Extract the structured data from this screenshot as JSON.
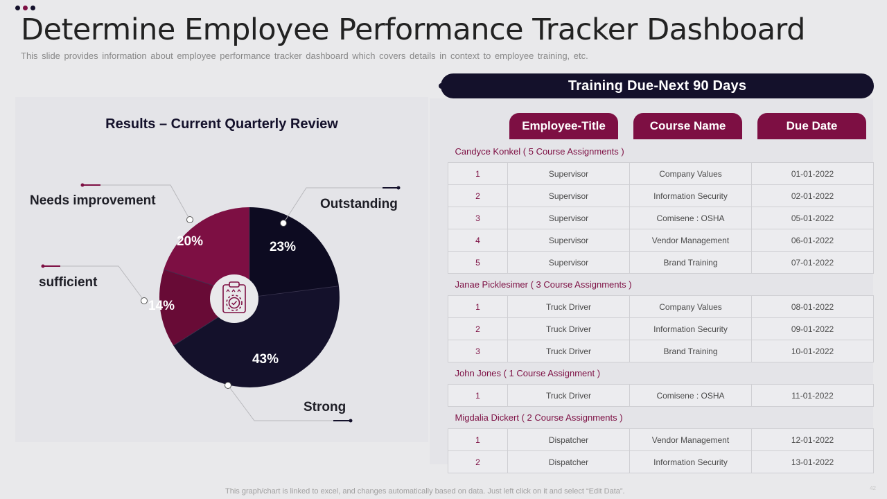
{
  "header": {
    "title": "Determine Employee Performance Tracker Dashboard",
    "subtitle": "This slide provides information about employee performance tracker dashboard which covers details in context to employee training, etc."
  },
  "chart_data": {
    "type": "pie",
    "title": "Results – Current Quarterly Review",
    "slices": [
      {
        "label": "Outstanding",
        "value": 23,
        "value_label": "23%",
        "color": "#0d0b21"
      },
      {
        "label": "Strong",
        "value": 43,
        "value_label": "43%",
        "color": "#14112b"
      },
      {
        "label": "sufficient",
        "value": 14,
        "value_label": "14%",
        "color": "#680b36"
      },
      {
        "label": "Needs improvement",
        "value": 20,
        "value_label": "20%",
        "color": "#7d0f43"
      }
    ],
    "center_icon": "clipboard-gear-icon",
    "center_icon_color": "#7d0f43"
  },
  "training": {
    "title": "Training Due-Next 90 Days",
    "columns": [
      "Employee-Title",
      "Course Name",
      "Due Date"
    ],
    "groups": [
      {
        "name": "Candyce Konkel ( 5 Course Assignments )",
        "rows": [
          {
            "no": "1",
            "title": "Supervisor",
            "course": "Company Values",
            "due": "01-01-2022"
          },
          {
            "no": "2",
            "title": "Supervisor",
            "course": "Information Security",
            "due": "02-01-2022"
          },
          {
            "no": "3",
            "title": "Supervisor",
            "course": "Comisene : OSHA",
            "due": "05-01-2022"
          },
          {
            "no": "4",
            "title": "Supervisor",
            "course": "Vendor Management",
            "due": "06-01-2022"
          },
          {
            "no": "5",
            "title": "Supervisor",
            "course": "Brand Training",
            "due": "07-01-2022"
          }
        ]
      },
      {
        "name": "Janae Picklesimer ( 3 Course Assignments )",
        "rows": [
          {
            "no": "1",
            "title": "Truck Driver",
            "course": "Company Values",
            "due": "08-01-2022"
          },
          {
            "no": "2",
            "title": "Truck Driver",
            "course": "Information Security",
            "due": "09-01-2022"
          },
          {
            "no": "3",
            "title": "Truck Driver",
            "course": "Brand Training",
            "due": "10-01-2022"
          }
        ]
      },
      {
        "name": "John Jones ( 1 Course Assignment )",
        "rows": [
          {
            "no": "1",
            "title": "Truck Driver",
            "course": "Comisene : OSHA",
            "due": "11-01-2022"
          }
        ]
      },
      {
        "name": "Migdalia Dickert ( 2 Course Assignments )",
        "rows": [
          {
            "no": "1",
            "title": "Dispatcher",
            "course": "Vendor Management",
            "due": "12-01-2022"
          },
          {
            "no": "2",
            "title": "Dispatcher",
            "course": "Information Security",
            "due": "13-01-2022"
          }
        ]
      }
    ]
  },
  "colors": {
    "navy": "#14112b",
    "maroon": "#7d0f43",
    "background": "#e9e9eb"
  },
  "footer": {
    "note": "This graph/chart is linked to excel, and changes automatically based on data. Just left click on it and select “Edit Data”.",
    "page_number": "42"
  }
}
